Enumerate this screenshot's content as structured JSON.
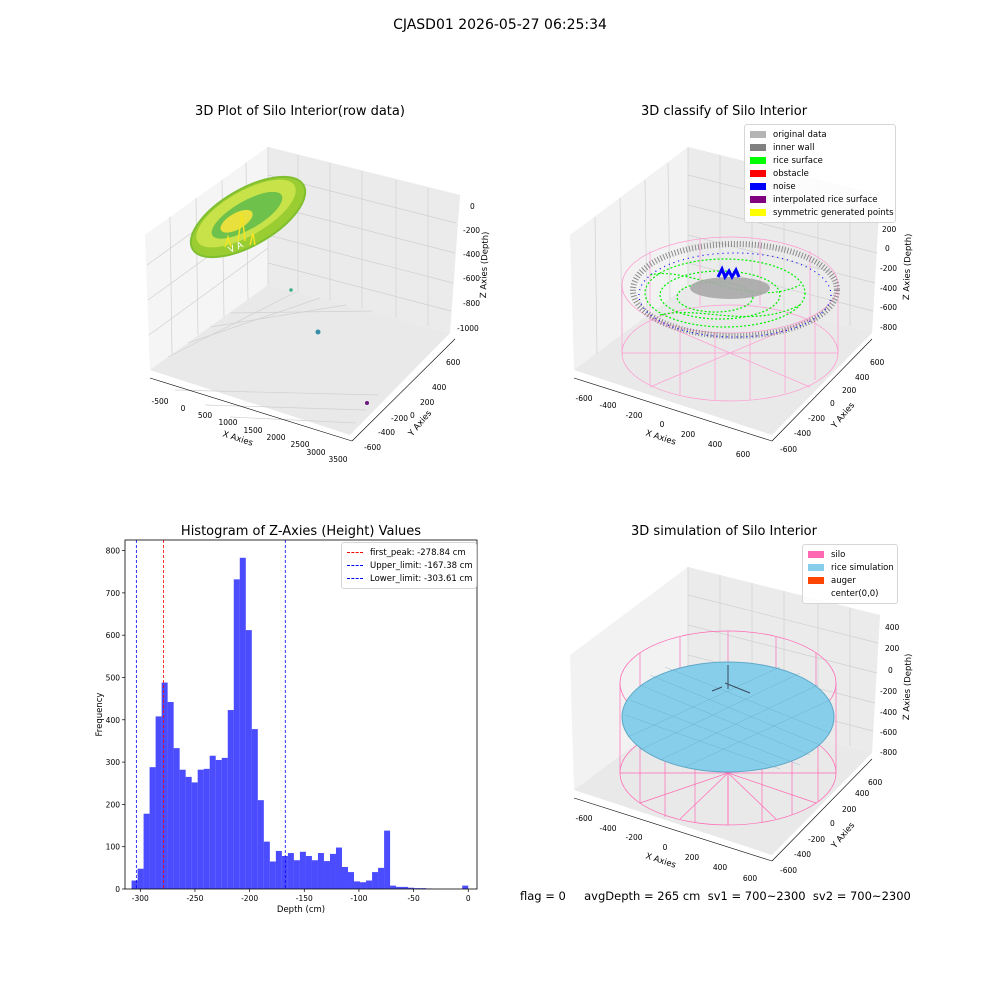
{
  "figure": {
    "suptitle": "CJASD01 2026-05-27 06:25:34",
    "footer": "flag = 0     avgDepth = 265 cm  sv1 = 700~2300  sv2 = 700~2300"
  },
  "panels": {
    "raw": {
      "title": "3D Plot of Silo Interior(row data)",
      "xlabel": "X Axies",
      "ylabel": "Y Axies",
      "zlabel": "Z Axies (Depth)",
      "xticks": [
        "-500",
        "0",
        "500",
        "1000",
        "1500",
        "2000",
        "2500",
        "3000",
        "3500"
      ],
      "yticks": [
        "600",
        "400",
        "200",
        "0",
        "-200",
        "-400",
        "-600"
      ],
      "zticks": [
        "0",
        "-200",
        "-400",
        "-600",
        "-800",
        "-1000"
      ]
    },
    "classify": {
      "title": "3D classify of Silo Interior",
      "xlabel": "X Axies",
      "ylabel": "Y Axies",
      "zlabel": "Z Axies (Depth)",
      "xticks": [
        "-600",
        "-400",
        "-200",
        "0",
        "200",
        "400",
        "600"
      ],
      "yticks": [
        "600",
        "400",
        "200",
        "0",
        "-200",
        "-400",
        "-600"
      ],
      "zticks": [
        "200",
        "0",
        "-200",
        "-400",
        "-600",
        "-800"
      ],
      "legend": [
        {
          "label": "original data",
          "color": "#b4b4b4"
        },
        {
          "label": "inner wall",
          "color": "#808080"
        },
        {
          "label": "rice surface",
          "color": "#00ff00"
        },
        {
          "label": "obstacle",
          "color": "#ff0000"
        },
        {
          "label": "noise",
          "color": "#0000ff"
        },
        {
          "label": "interpolated rice surface",
          "color": "#800080"
        },
        {
          "label": "symmetric generated points",
          "color": "#ffff00"
        }
      ]
    },
    "simulation": {
      "title": "3D simulation of Silo Interior",
      "xlabel": "X Axies",
      "ylabel": "Y Axies",
      "zlabel": "Z Axies (Depth)",
      "xticks": [
        "-600",
        "-400",
        "-200",
        "0",
        "200",
        "400",
        "600"
      ],
      "yticks": [
        "600",
        "400",
        "200",
        "0",
        "-200",
        "-400",
        "-600"
      ],
      "zticks": [
        "400",
        "200",
        "0",
        "-200",
        "-400",
        "-600",
        "-800"
      ],
      "legend": [
        {
          "label": "silo",
          "color": "#ff69b4"
        },
        {
          "label": "rice simulation",
          "color": "#87ceeb"
        },
        {
          "label": "auger",
          "color": "#ff4500"
        },
        {
          "label": "center(0,0)",
          "color": "#ffffff"
        }
      ]
    }
  },
  "chart_data": {
    "type": "bar",
    "title": "Histogram of Z-Axies (Height) Values",
    "xlabel": "Depth (cm)",
    "ylabel": "Frequency",
    "xlim": [
      -314,
      8
    ],
    "ylim": [
      0,
      825
    ],
    "xticks": [
      -300,
      -250,
      -200,
      -150,
      -100,
      -50,
      0
    ],
    "yticks": [
      0,
      100,
      200,
      300,
      400,
      500,
      600,
      700,
      800
    ],
    "bin_width": 5.5,
    "bins": [
      {
        "x0": -308.0,
        "v": 20
      },
      {
        "x0": -302.5,
        "v": 48
      },
      {
        "x0": -297.0,
        "v": 178
      },
      {
        "x0": -291.5,
        "v": 288
      },
      {
        "x0": -286.0,
        "v": 408
      },
      {
        "x0": -280.5,
        "v": 488
      },
      {
        "x0": -275.0,
        "v": 442
      },
      {
        "x0": -269.5,
        "v": 333
      },
      {
        "x0": -264.0,
        "v": 282
      },
      {
        "x0": -258.5,
        "v": 265
      },
      {
        "x0": -253.0,
        "v": 252
      },
      {
        "x0": -247.5,
        "v": 282
      },
      {
        "x0": -242.0,
        "v": 284
      },
      {
        "x0": -236.5,
        "v": 315
      },
      {
        "x0": -231.0,
        "v": 305
      },
      {
        "x0": -225.5,
        "v": 310
      },
      {
        "x0": -220.0,
        "v": 423
      },
      {
        "x0": -214.5,
        "v": 732
      },
      {
        "x0": -209.0,
        "v": 783
      },
      {
        "x0": -203.5,
        "v": 612
      },
      {
        "x0": -198.0,
        "v": 378
      },
      {
        "x0": -192.5,
        "v": 210
      },
      {
        "x0": -187.0,
        "v": 112
      },
      {
        "x0": -181.5,
        "v": 65
      },
      {
        "x0": -176.0,
        "v": 90
      },
      {
        "x0": -170.5,
        "v": 78
      },
      {
        "x0": -165.0,
        "v": 85
      },
      {
        "x0": -159.5,
        "v": 68
      },
      {
        "x0": -154.0,
        "v": 88
      },
      {
        "x0": -148.5,
        "v": 78
      },
      {
        "x0": -143.0,
        "v": 68
      },
      {
        "x0": -137.5,
        "v": 85
      },
      {
        "x0": -132.0,
        "v": 66
      },
      {
        "x0": -126.5,
        "v": 83
      },
      {
        "x0": -121.0,
        "v": 98
      },
      {
        "x0": -115.5,
        "v": 52
      },
      {
        "x0": -110.0,
        "v": 40
      },
      {
        "x0": -104.5,
        "v": 18
      },
      {
        "x0": -99.0,
        "v": 16
      },
      {
        "x0": -93.5,
        "v": 20
      },
      {
        "x0": -88.0,
        "v": 40
      },
      {
        "x0": -82.5,
        "v": 50
      },
      {
        "x0": -77.0,
        "v": 138
      },
      {
        "x0": -71.5,
        "v": 8
      },
      {
        "x0": -66.0,
        "v": 5
      },
      {
        "x0": -60.5,
        "v": 5
      },
      {
        "x0": -55.0,
        "v": 3
      },
      {
        "x0": -49.5,
        "v": 2
      },
      {
        "x0": -44.0,
        "v": 2
      },
      {
        "x0": -38.5,
        "v": 1
      },
      {
        "x0": -5.5,
        "v": 8
      }
    ],
    "bar_color": "#0000ff",
    "vlines": [
      {
        "label": "first_peak: -278.84 cm",
        "x": -278.84,
        "color": "#ff0000"
      },
      {
        "label": "Upper_limit: -167.38 cm",
        "x": -167.38,
        "color": "#0000ff"
      },
      {
        "label": "Lower_limit: -303.61 cm",
        "x": -303.61,
        "color": "#0000ff"
      }
    ],
    "legend_position": "top-right"
  }
}
